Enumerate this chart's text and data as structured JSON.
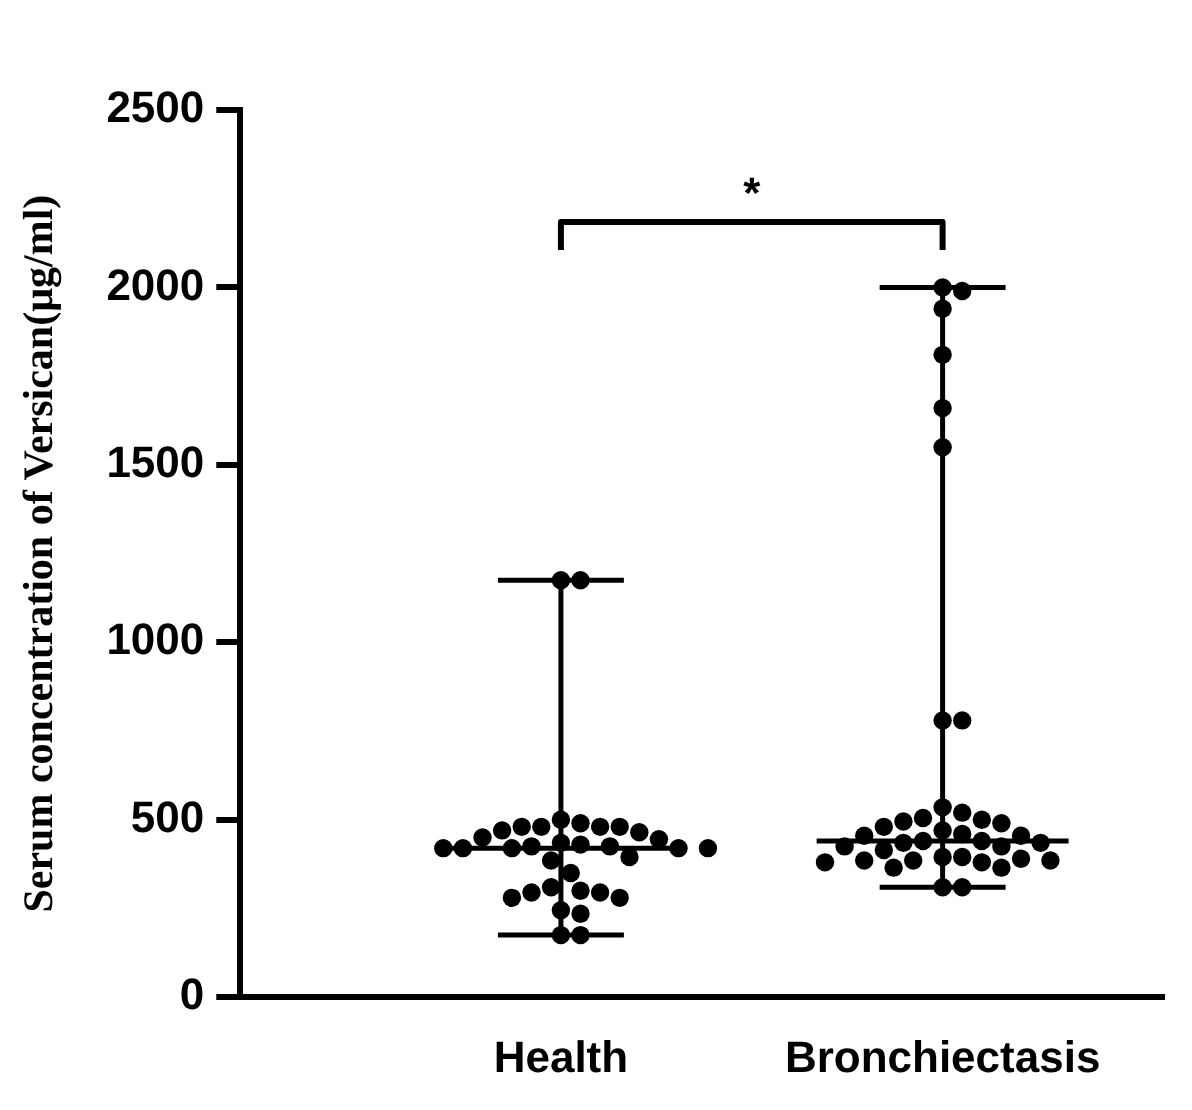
{
  "chart_data": {
    "type": "box",
    "ylabel": "Serum concentration of Versican(μg/ml)",
    "categories": [
      "Health",
      "Bronchiectasis"
    ],
    "boxes": [
      {
        "low": 175,
        "q1": 420,
        "median": 420,
        "q3": 420,
        "high": 1175
      },
      {
        "low": 310,
        "q1": 440,
        "median": 440,
        "q3": 440,
        "high": 2000
      }
    ],
    "series": [
      {
        "type": "scatter",
        "color": "#000000",
        "x": [
          "Health",
          "Health",
          "Health",
          "Health",
          "Health",
          "Health",
          "Health",
          "Health",
          "Health",
          "Health",
          "Health",
          "Health",
          "Health",
          "Health",
          "Health",
          "Health",
          "Health",
          "Health",
          "Health",
          "Health",
          "Health",
          "Health",
          "Health",
          "Health",
          "Health",
          "Health",
          "Health",
          "Health",
          "Health",
          "Health",
          "Health",
          "Health",
          "Health",
          "Health",
          "Bronchiectasis",
          "Bronchiectasis",
          "Bronchiectasis",
          "Bronchiectasis",
          "Bronchiectasis",
          "Bronchiectasis",
          "Bronchiectasis",
          "Bronchiectasis",
          "Bronchiectasis",
          "Bronchiectasis",
          "Bronchiectasis",
          "Bronchiectasis",
          "Bronchiectasis",
          "Bronchiectasis",
          "Bronchiectasis",
          "Bronchiectasis",
          "Bronchiectasis",
          "Bronchiectasis",
          "Bronchiectasis",
          "Bronchiectasis",
          "Bronchiectasis",
          "Bronchiectasis",
          "Bronchiectasis",
          "Bronchiectasis",
          "Bronchiectasis",
          "Bronchiectasis",
          "Bronchiectasis",
          "Bronchiectasis",
          "Bronchiectasis",
          "Bronchiectasis",
          "Bronchiectasis",
          "Bronchiectasis",
          "Bronchiectasis",
          "Bronchiectasis",
          "Bronchiectasis",
          "Bronchiectasis",
          "Bronchiectasis",
          "Bronchiectasis"
        ],
        "values": [
          1175,
          1175,
          500,
          490,
          480,
          480,
          480,
          480,
          470,
          465,
          450,
          445,
          435,
          430,
          425,
          425,
          420,
          420,
          420,
          420,
          420,
          395,
          385,
          350,
          310,
          300,
          295,
          295,
          280,
          280,
          245,
          235,
          175,
          175,
          2000,
          1990,
          1940,
          1810,
          1660,
          1550,
          780,
          780,
          535,
          520,
          505,
          500,
          495,
          490,
          480,
          470,
          460,
          455,
          455,
          440,
          440,
          435,
          435,
          425,
          425,
          415,
          395,
          395,
          390,
          385,
          385,
          385,
          380,
          380,
          365,
          365,
          310,
          310
        ]
      }
    ],
    "ylim": [
      0,
      2500
    ],
    "yticks": [
      0,
      500,
      1000,
      1500,
      2000,
      2500
    ],
    "annotations": [
      "*"
    ],
    "grid": false,
    "legend": false,
    "marker": "circle"
  }
}
